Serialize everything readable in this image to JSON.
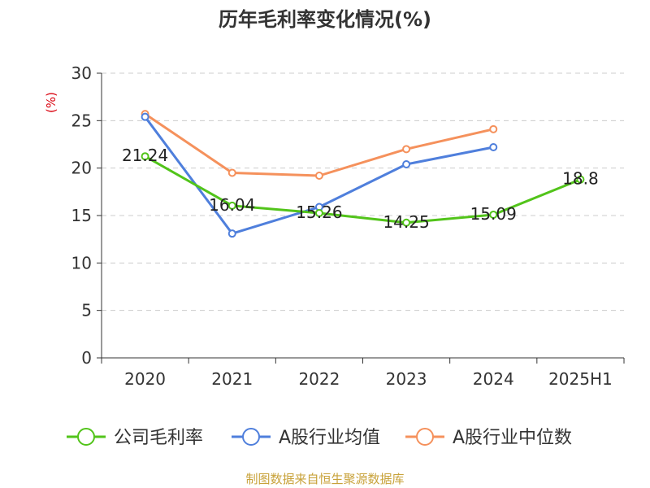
{
  "chart_data": {
    "type": "line",
    "title": "历年毛利率变化情况(%)",
    "ylabel": "(%)",
    "categories": [
      "2020",
      "2021",
      "2022",
      "2023",
      "2024",
      "2025H1"
    ],
    "ylim": [
      0,
      30
    ],
    "yticks": [
      "0",
      "5",
      "10",
      "15",
      "20",
      "25",
      "30"
    ],
    "grid": true,
    "legend_position": "bottom",
    "series": [
      {
        "name": "公司毛利率",
        "color": "#52c41a",
        "values": [
          21.24,
          16.04,
          15.26,
          14.25,
          15.09,
          18.8
        ],
        "labels": [
          "21.24",
          "16.04",
          "15.26",
          "14.25",
          "15.09",
          "18.8"
        ]
      },
      {
        "name": "A股行业均值",
        "color": "#4f7fdc",
        "values": [
          25.4,
          13.1,
          15.9,
          20.4,
          22.2,
          null
        ]
      },
      {
        "name": "A股行业中位数",
        "color": "#f5915c",
        "values": [
          25.7,
          19.5,
          19.2,
          22.0,
          24.1,
          null
        ]
      }
    ]
  },
  "source": "制图数据来自恒生聚源数据库"
}
